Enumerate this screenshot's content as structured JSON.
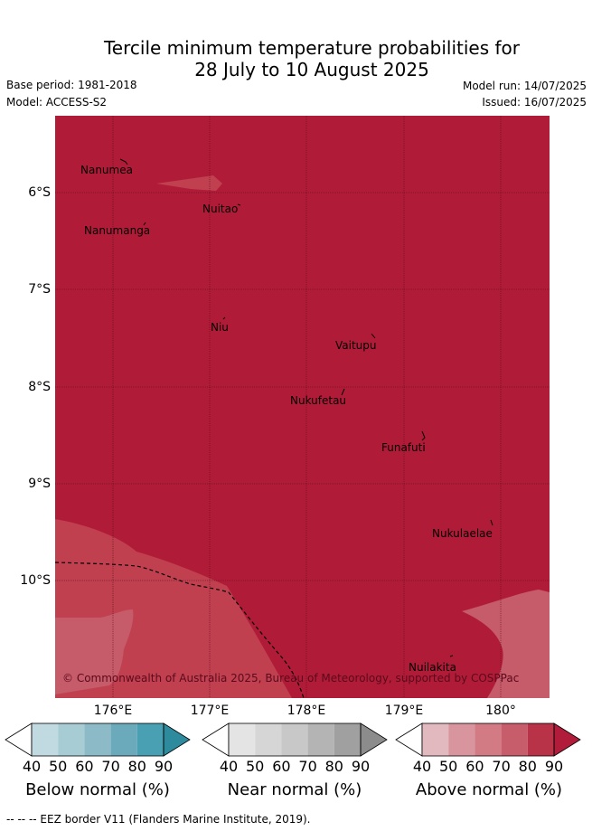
{
  "title_line1": "Tercile minimum temperature probabilities for",
  "title_line2": "28 July to 10 August 2025",
  "base_period": "Base period: 1981-2018",
  "model": "Model: ACCESS-S2",
  "model_run": "Model run: 14/07/2025",
  "issued": "Issued: 16/07/2025",
  "lat_labels": [
    "6°S",
    "7°S",
    "8°S",
    "9°S",
    "10°S"
  ],
  "lon_labels": [
    "176°E",
    "177°E",
    "178°E",
    "179°E",
    "180°"
  ],
  "islands": [
    "Nanumea",
    "Nuitao",
    "Nanumanga",
    "Niu",
    "Vaitupu",
    "Nukufetau",
    "Funafuti",
    "Nukulaelae",
    "Nuilakita"
  ],
  "copyright": "© Commonwealth of Australia 2025, Bureau of Meteorology, supported by COSPPac",
  "colorbars": [
    {
      "title": "Below normal (%)",
      "ticks": [
        "40",
        "50",
        "60",
        "70",
        "80",
        "90"
      ],
      "colors": [
        "#ffffff",
        "#c1d9e0",
        "#a8ccd3",
        "#8cbbc7",
        "#6aaabb",
        "#48a0b2",
        "#2e8b9e"
      ]
    },
    {
      "title": "Near normal (%)",
      "ticks": [
        "40",
        "50",
        "60",
        "70",
        "80",
        "90"
      ],
      "colors": [
        "#ffffff",
        "#e4e4e4",
        "#d6d6d6",
        "#c8c8c8",
        "#b4b4b4",
        "#a0a0a0",
        "#8c8c8c"
      ]
    },
    {
      "title": "Above normal (%)",
      "ticks": [
        "40",
        "50",
        "60",
        "70",
        "80",
        "90"
      ],
      "colors": [
        "#ffffff",
        "#e3b9c0",
        "#d9959e",
        "#d27b84",
        "#c75c6a",
        "#b83348",
        "#b01c3a"
      ]
    }
  ],
  "map_colors": {
    "dominant": "#b01c37",
    "lighter": "#c04050",
    "lightest": "#c65b6a"
  },
  "footnote": "-- -- -- EEZ border V11 (Flanders Marine Institute, 2019)."
}
